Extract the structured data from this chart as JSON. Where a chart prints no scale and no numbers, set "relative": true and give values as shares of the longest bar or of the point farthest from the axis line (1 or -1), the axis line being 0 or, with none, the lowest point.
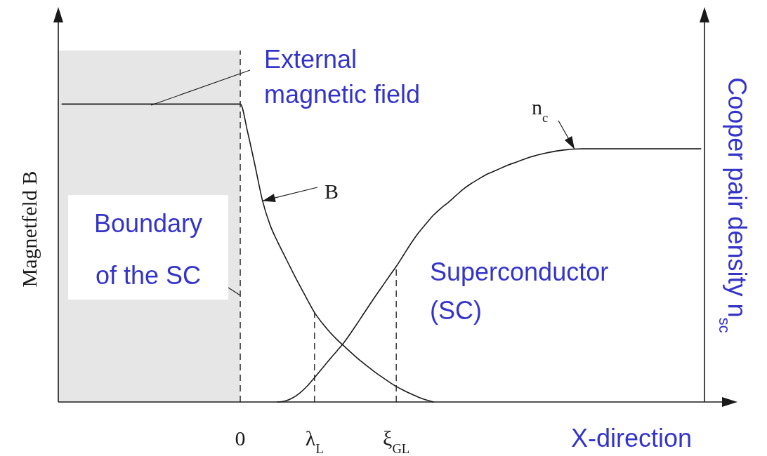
{
  "chart_data": {
    "type": "line",
    "relative": true,
    "xlabel": "X-direction",
    "ylabel": "Magnetfeld B",
    "y2label": "Cooper pair density n$_{sc}$",
    "categories": [
      null,
      null,
      null,
      null,
      null,
      null,
      null,
      null,
      null,
      null,
      null,
      null,
      null,
      null,
      null,
      null,
      null,
      null,
      null,
      null,
      null,
      null,
      null,
      null,
      "0",
      null,
      null,
      null,
      null,
      null,
      null,
      null,
      null,
      null,
      "λ$_{L}$",
      null,
      null,
      null,
      null,
      null,
      null,
      null,
      null,
      null,
      null,
      "ξ$_{GL}$",
      null,
      null,
      null,
      null,
      null,
      null,
      null,
      null,
      null,
      null,
      null,
      null,
      null,
      null,
      null,
      null,
      null,
      null,
      null,
      null,
      null,
      null,
      null,
      null,
      null,
      null,
      null,
      null,
      null,
      null,
      null,
      null,
      null,
      null,
      null,
      null,
      null,
      null,
      null,
      null,
      null
    ],
    "series": [
      {
        "name": "B",
        "color": "#1a1a1a",
        "values": [
          1,
          1,
          1,
          1,
          1,
          1,
          1,
          1,
          1,
          1,
          1,
          1,
          1,
          1,
          1,
          1,
          1,
          1,
          1,
          1,
          1,
          1,
          1,
          1,
          1,
          0.905,
          0.792,
          0.675,
          0.595,
          0.539,
          0.489,
          0.439,
          0.391,
          0.345,
          0.3,
          0.266,
          0.236,
          0.21,
          0.187,
          0.164,
          0.142,
          0.122,
          0.103,
          0.085,
          0.068,
          0.052,
          0.039,
          0.027,
          0.016,
          0.007,
          0,
          null,
          null,
          null,
          null,
          null,
          null,
          null,
          null,
          null,
          null,
          null,
          null,
          null,
          null,
          null,
          null,
          null,
          null,
          null,
          null,
          null,
          null,
          null,
          null,
          null,
          null,
          null,
          null,
          null,
          null,
          null,
          null,
          null,
          null,
          null,
          null
        ]
      },
      {
        "name": "n$_{c}$",
        "color": "#1a1a1a",
        "values": [
          null,
          null,
          null,
          null,
          null,
          null,
          null,
          null,
          null,
          null,
          null,
          null,
          null,
          null,
          null,
          null,
          null,
          null,
          null,
          null,
          null,
          null,
          null,
          null,
          null,
          null,
          null,
          null,
          null,
          0,
          0.003,
          0.013,
          0.03,
          0.053,
          0.082,
          0.112,
          0.142,
          0.171,
          0.201,
          0.236,
          0.273,
          0.311,
          0.348,
          0.384,
          0.42,
          0.455,
          0.494,
          0.533,
          0.568,
          0.598,
          0.627,
          0.65,
          0.67,
          0.692,
          0.714,
          0.732,
          0.747,
          0.762,
          0.773,
          0.784,
          0.795,
          0.804,
          0.813,
          0.822,
          0.829,
          0.835,
          0.84,
          0.844,
          0.847,
          0.849,
          0.85,
          0.85,
          0.85,
          0.85,
          0.85,
          0.85,
          0.85,
          0.85,
          0.85,
          0.85,
          0.85,
          0.85,
          0.85,
          0.85,
          0.85,
          0.85,
          0.85
        ]
      }
    ],
    "ref_lines": [
      {
        "axis": "x",
        "value": "0",
        "line_style": "dashed"
      },
      {
        "axis": "x",
        "value": "λ$_{L}$",
        "line_style": "dashed"
      },
      {
        "axis": "x",
        "value": "ξ$_{GL}$",
        "line_style": "dashed"
      }
    ],
    "annotations": [
      "External\nmagnetic field",
      "Boundary\nof the SC",
      "Superconductor\n(SC)"
    ]
  }
}
